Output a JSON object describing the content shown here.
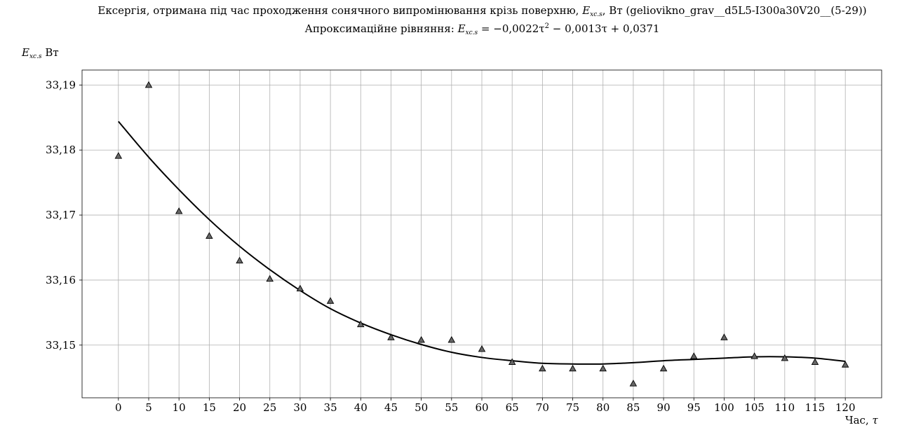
{
  "chart_data": {
    "type": "scatter",
    "title": "Ексергія, отримана під час проходження сонячного випромінювання крізь поверхню, E_xc.s, Вт (geliovikno_grav__d5L5-I300a30V20__(5-29))",
    "title_parts": {
      "prefix": "Ексергія, отримана під час проходження сонячного випромінювання крізь поверхню, ",
      "symbol": "E",
      "symbol_sub": "xc.s",
      "suffix": ", Вт (geliovikno_grav__d5L5-I300a30V20__(5-29))"
    },
    "subtitle": "Апроксимаційне рівняння: E_xc.s = −0,0022τ² − 0,0013τ + 0,0371",
    "subtitle_parts": {
      "prefix": "Апроксимаційне рівняння: ",
      "symbol": "E",
      "symbol_sub": "xc.s",
      "equation": " = −0,0022τ",
      "power": "2",
      "rest": " − 0,0013τ + 0,0371"
    },
    "ylabel": "E_xc.s Вт",
    "ylabel_parts": {
      "symbol": "E",
      "symbol_sub": "xc.s",
      "unit": " Вт"
    },
    "xlabel": "Час, τ",
    "xlabel_parts": {
      "text": "Час, ",
      "symbol": "τ"
    },
    "xlim": [
      -6,
      126
    ],
    "ylim": [
      33.1419,
      33.1923
    ],
    "xticks": [
      0,
      5,
      10,
      15,
      20,
      25,
      30,
      35,
      40,
      45,
      50,
      55,
      60,
      65,
      70,
      75,
      80,
      85,
      90,
      95,
      100,
      105,
      110,
      115,
      120
    ],
    "yticks": [
      33.15,
      33.16,
      33.17,
      33.18,
      33.19
    ],
    "ytick_labels": [
      "33,15",
      "33,16",
      "33,17",
      "33,18",
      "33,19"
    ],
    "grid": true,
    "series": [
      {
        "marker": "triangle",
        "x": [
          0,
          5,
          10,
          15,
          20,
          25,
          30,
          35,
          40,
          45,
          50,
          55,
          60,
          65,
          70,
          75,
          80,
          85,
          90,
          95,
          100,
          105,
          110,
          115,
          120
        ],
        "y": [
          33.1791,
          33.19,
          33.1706,
          33.1668,
          33.163,
          33.1602,
          33.1587,
          33.1568,
          33.1532,
          33.1512,
          33.1508,
          33.1508,
          33.1494,
          33.1474,
          33.1464,
          33.1464,
          33.1464,
          33.1441,
          33.1464,
          33.1483,
          33.1512,
          33.1483,
          33.148,
          33.1474,
          33.147
        ]
      },
      {
        "marker": "line",
        "x": [
          0,
          5,
          10,
          15,
          20,
          25,
          30,
          35,
          40,
          45,
          50,
          55,
          60,
          65,
          70,
          75,
          80,
          85,
          90,
          95,
          100,
          105,
          110,
          115,
          120
        ],
        "y": [
          33.1844,
          33.1789,
          33.1739,
          33.1693,
          33.1652,
          33.1616,
          33.1584,
          33.1556,
          33.1534,
          33.1516,
          33.1501,
          33.1489,
          33.1481,
          33.1476,
          33.1472,
          33.1471,
          33.1471,
          33.1473,
          33.1476,
          33.1478,
          33.148,
          33.1482,
          33.1482,
          33.148,
          33.1475
        ]
      }
    ],
    "colors": {
      "marker_fill": "#666666",
      "marker_edge": "#000000",
      "line": "#000000",
      "grid": "#b0b0b0"
    }
  }
}
